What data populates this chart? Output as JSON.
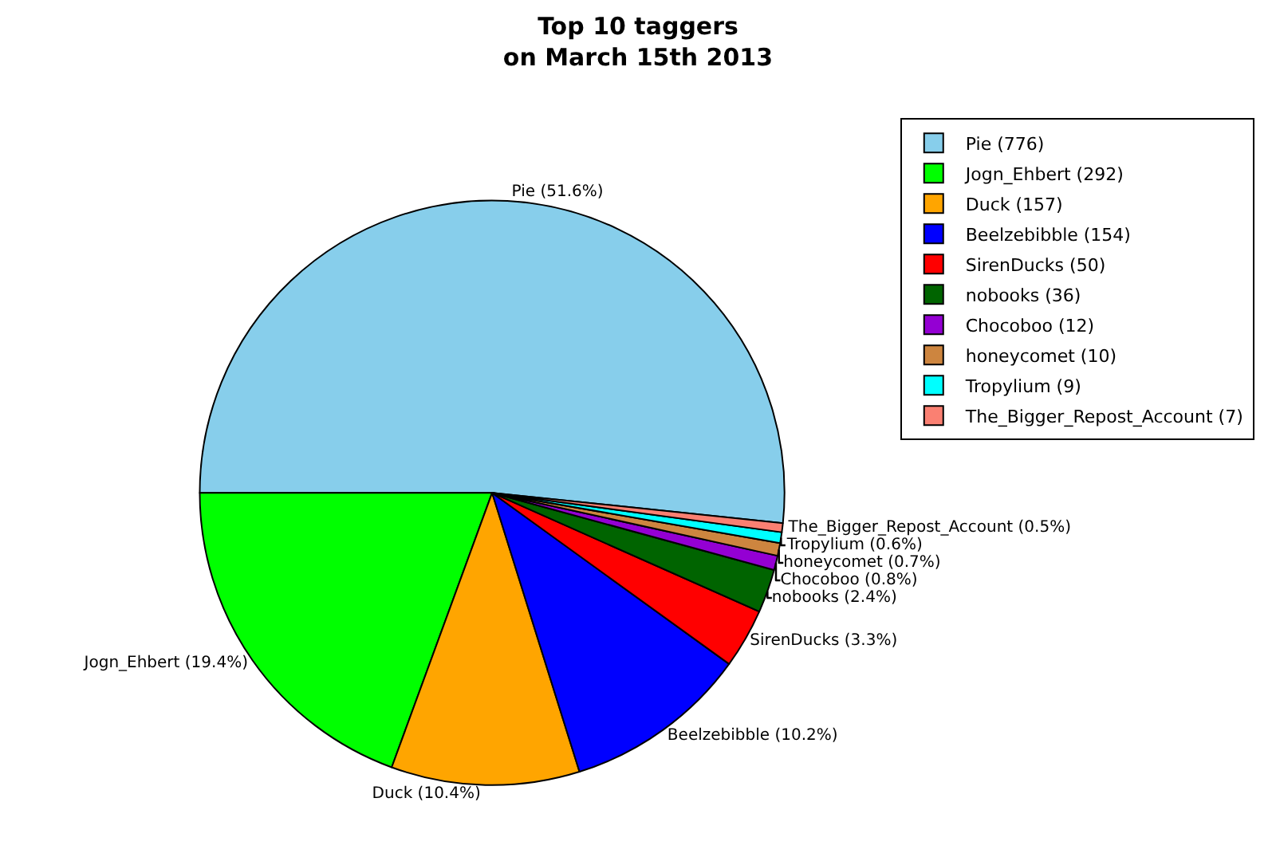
{
  "chart_data": {
    "type": "pie",
    "title": "Top 10 taggers\non March 15th 2013",
    "categories": [
      "Pie (776)",
      "Jogn_Ehbert (292)",
      "Duck (157)",
      "Beelzebibble (154)",
      "SirenDucks (50)",
      "nobooks (36)",
      "Chocoboo (12)",
      "honeycomet (10)",
      "Tropylium (9)",
      "The_Bigger_Repost_Account (7)"
    ],
    "values": [
      51.6,
      19.4,
      10.4,
      10.2,
      3.3,
      2.4,
      0.8,
      0.7,
      0.6,
      0.5
    ],
    "value_labels": [
      "Pie (51.6%)",
      "Jogn_Ehbert (19.4%)",
      "Duck (10.4%)",
      "Beelzebibble (10.2%)",
      "SirenDucks (3.3%)",
      "nobooks (2.4%)",
      "Chocoboo (0.8%)",
      "honeycomet (0.7%)",
      "Tropylium (0.6%)",
      "The_Bigger_Repost_Account (0.5%)"
    ],
    "colors": [
      "#87ceeb",
      "#00ff00",
      "#ffa500",
      "#0000ff",
      "#ff0000",
      "#006400",
      "#9400d3",
      "#cd853f",
      "#00ffff",
      "#fa8072"
    ],
    "legend": "top right"
  }
}
